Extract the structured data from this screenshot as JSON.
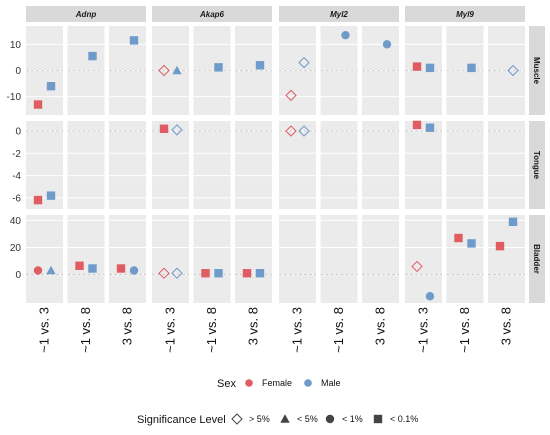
{
  "chart_data": {
    "type": "scatter",
    "column_facets": [
      "Adnp",
      "Akap6",
      "Myl2",
      "Myl9"
    ],
    "row_facets": [
      "Muscle",
      "Tongue",
      "Bladder"
    ],
    "comparisons": [
      "~1 vs. 3",
      "~1 vs. 8",
      "3 vs. 8"
    ],
    "y_axes": {
      "Muscle": {
        "ticks": [
          10,
          0,
          -10
        ],
        "ylim": [
          -17,
          17
        ]
      },
      "Tongue": {
        "ticks": [
          0,
          -2,
          -4,
          -6
        ],
        "ylim": [
          -7,
          0.9
        ]
      },
      "Bladder": {
        "ticks": [
          40,
          20,
          0
        ],
        "ylim": [
          -21,
          44
        ]
      }
    },
    "legend": {
      "sex_title": "Sex",
      "sex": [
        {
          "label": "Female",
          "color": "#E05C63"
        },
        {
          "label": "Male",
          "color": "#6E9BC9"
        }
      ],
      "significance_title": "Significance Level",
      "significance": [
        {
          "label": "> 5%",
          "shape": "open-diamond"
        },
        {
          "label": "< 5%",
          "shape": "triangle"
        },
        {
          "label": "< 1%",
          "shape": "circle"
        },
        {
          "label": "< 0.1%",
          "shape": "square"
        }
      ]
    },
    "points": [
      {
        "gene": "Adnp",
        "tissue": "Muscle",
        "comparison": "~1 vs. 3",
        "sex": "Female",
        "significance": "< 0.1%",
        "y": -13
      },
      {
        "gene": "Adnp",
        "tissue": "Muscle",
        "comparison": "~1 vs. 3",
        "sex": "Male",
        "significance": "< 0.1%",
        "y": -6
      },
      {
        "gene": "Adnp",
        "tissue": "Muscle",
        "comparison": "~1 vs. 8",
        "sex": "Male",
        "significance": "< 0.1%",
        "y": 5.5
      },
      {
        "gene": "Adnp",
        "tissue": "Muscle",
        "comparison": "3 vs. 8",
        "sex": "Male",
        "significance": "< 0.1%",
        "y": 11.5
      },
      {
        "gene": "Akap6",
        "tissue": "Muscle",
        "comparison": "~1 vs. 3",
        "sex": "Female",
        "significance": "> 5%",
        "y": 0
      },
      {
        "gene": "Akap6",
        "tissue": "Muscle",
        "comparison": "~1 vs. 3",
        "sex": "Male",
        "significance": "< 5%",
        "y": 0
      },
      {
        "gene": "Akap6",
        "tissue": "Muscle",
        "comparison": "~1 vs. 8",
        "sex": "Male",
        "significance": "< 0.1%",
        "y": 1.2
      },
      {
        "gene": "Akap6",
        "tissue": "Muscle",
        "comparison": "3 vs. 8",
        "sex": "Male",
        "significance": "< 0.1%",
        "y": 2
      },
      {
        "gene": "Myl2",
        "tissue": "Muscle",
        "comparison": "~1 vs. 3",
        "sex": "Female",
        "significance": "> 5%",
        "y": -9.5
      },
      {
        "gene": "Myl2",
        "tissue": "Muscle",
        "comparison": "~1 vs. 3",
        "sex": "Male",
        "significance": "> 5%",
        "y": 3
      },
      {
        "gene": "Myl2",
        "tissue": "Muscle",
        "comparison": "~1 vs. 8",
        "sex": "Male",
        "significance": "< 1%",
        "y": 13.5
      },
      {
        "gene": "Myl2",
        "tissue": "Muscle",
        "comparison": "3 vs. 8",
        "sex": "Male",
        "significance": "< 1%",
        "y": 10
      },
      {
        "gene": "Myl9",
        "tissue": "Muscle",
        "comparison": "~1 vs. 3",
        "sex": "Female",
        "significance": "< 0.1%",
        "y": 1.5
      },
      {
        "gene": "Myl9",
        "tissue": "Muscle",
        "comparison": "~1 vs. 3",
        "sex": "Male",
        "significance": "< 0.1%",
        "y": 1
      },
      {
        "gene": "Myl9",
        "tissue": "Muscle",
        "comparison": "~1 vs. 8",
        "sex": "Male",
        "significance": "< 0.1%",
        "y": 1
      },
      {
        "gene": "Myl9",
        "tissue": "Muscle",
        "comparison": "3 vs. 8",
        "sex": "Male",
        "significance": "> 5%",
        "y": 0
      },
      {
        "gene": "Adnp",
        "tissue": "Tongue",
        "comparison": "~1 vs. 3",
        "sex": "Female",
        "significance": "< 0.1%",
        "y": -6.2
      },
      {
        "gene": "Adnp",
        "tissue": "Tongue",
        "comparison": "~1 vs. 3",
        "sex": "Male",
        "significance": "< 0.1%",
        "y": -5.8
      },
      {
        "gene": "Akap6",
        "tissue": "Tongue",
        "comparison": "~1 vs. 3",
        "sex": "Female",
        "significance": "< 0.1%",
        "y": 0.2
      },
      {
        "gene": "Akap6",
        "tissue": "Tongue",
        "comparison": "~1 vs. 3",
        "sex": "Male",
        "significance": "> 5%",
        "y": 0.1
      },
      {
        "gene": "Myl2",
        "tissue": "Tongue",
        "comparison": "~1 vs. 3",
        "sex": "Female",
        "significance": "> 5%",
        "y": 0
      },
      {
        "gene": "Myl2",
        "tissue": "Tongue",
        "comparison": "~1 vs. 3",
        "sex": "Male",
        "significance": "> 5%",
        "y": 0
      },
      {
        "gene": "Myl9",
        "tissue": "Tongue",
        "comparison": "~1 vs. 3",
        "sex": "Female",
        "significance": "< 0.1%",
        "y": 0.55
      },
      {
        "gene": "Myl9",
        "tissue": "Tongue",
        "comparison": "~1 vs. 3",
        "sex": "Male",
        "significance": "< 0.1%",
        "y": 0.3
      },
      {
        "gene": "Adnp",
        "tissue": "Bladder",
        "comparison": "~1 vs. 3",
        "sex": "Female",
        "significance": "< 1%",
        "y": 3
      },
      {
        "gene": "Adnp",
        "tissue": "Bladder",
        "comparison": "~1 vs. 3",
        "sex": "Male",
        "significance": "< 5%",
        "y": 3
      },
      {
        "gene": "Adnp",
        "tissue": "Bladder",
        "comparison": "~1 vs. 8",
        "sex": "Female",
        "significance": "< 0.1%",
        "y": 6.5
      },
      {
        "gene": "Adnp",
        "tissue": "Bladder",
        "comparison": "~1 vs. 8",
        "sex": "Male",
        "significance": "< 0.1%",
        "y": 4.5
      },
      {
        "gene": "Adnp",
        "tissue": "Bladder",
        "comparison": "3 vs. 8",
        "sex": "Female",
        "significance": "< 0.1%",
        "y": 4.5
      },
      {
        "gene": "Adnp",
        "tissue": "Bladder",
        "comparison": "3 vs. 8",
        "sex": "Male",
        "significance": "< 1%",
        "y": 3
      },
      {
        "gene": "Akap6",
        "tissue": "Bladder",
        "comparison": "~1 vs. 3",
        "sex": "Female",
        "significance": "> 5%",
        "y": 1
      },
      {
        "gene": "Akap6",
        "tissue": "Bladder",
        "comparison": "~1 vs. 3",
        "sex": "Male",
        "significance": "> 5%",
        "y": 1
      },
      {
        "gene": "Akap6",
        "tissue": "Bladder",
        "comparison": "~1 vs. 8",
        "sex": "Female",
        "significance": "< 0.1%",
        "y": 1
      },
      {
        "gene": "Akap6",
        "tissue": "Bladder",
        "comparison": "~1 vs. 8",
        "sex": "Male",
        "significance": "< 0.1%",
        "y": 1
      },
      {
        "gene": "Akap6",
        "tissue": "Bladder",
        "comparison": "3 vs. 8",
        "sex": "Female",
        "significance": "< 0.1%",
        "y": 1
      },
      {
        "gene": "Akap6",
        "tissue": "Bladder",
        "comparison": "3 vs. 8",
        "sex": "Male",
        "significance": "< 0.1%",
        "y": 1
      },
      {
        "gene": "Myl9",
        "tissue": "Bladder",
        "comparison": "~1 vs. 3",
        "sex": "Female",
        "significance": "> 5%",
        "y": 6
      },
      {
        "gene": "Myl9",
        "tissue": "Bladder",
        "comparison": "~1 vs. 3",
        "sex": "Male",
        "significance": "< 1%",
        "y": -16
      },
      {
        "gene": "Myl9",
        "tissue": "Bladder",
        "comparison": "~1 vs. 8",
        "sex": "Female",
        "significance": "< 0.1%",
        "y": 27
      },
      {
        "gene": "Myl9",
        "tissue": "Bladder",
        "comparison": "~1 vs. 8",
        "sex": "Male",
        "significance": "< 0.1%",
        "y": 23
      },
      {
        "gene": "Myl9",
        "tissue": "Bladder",
        "comparison": "3 vs. 8",
        "sex": "Female",
        "significance": "< 0.1%",
        "y": 21
      },
      {
        "gene": "Myl9",
        "tissue": "Bladder",
        "comparison": "3 vs. 8",
        "sex": "Male",
        "significance": "< 0.1%",
        "y": 39
      }
    ]
  }
}
